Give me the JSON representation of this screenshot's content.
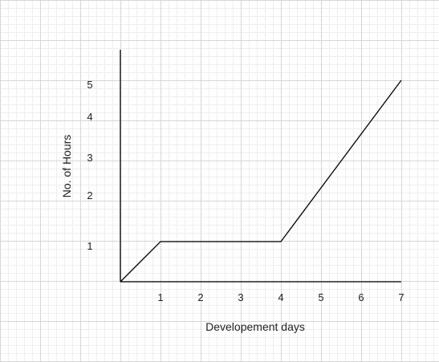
{
  "chart_data": {
    "type": "line",
    "x": [
      0,
      1,
      4,
      7
    ],
    "y": [
      0,
      1,
      1,
      5
    ],
    "x_ticks": [
      "1",
      "2",
      "3",
      "4",
      "5",
      "6",
      "7"
    ],
    "y_ticks": [
      "1",
      "2",
      "3",
      "4",
      "5"
    ],
    "xlabel": "Developement days",
    "ylabel": "No. of Hours",
    "xlim": [
      0,
      7
    ],
    "ylim": [
      0,
      5
    ],
    "grid": true,
    "colors": {
      "line": "#000000",
      "axis": "#000000",
      "y_tick_1": "#1a6b1a"
    }
  }
}
